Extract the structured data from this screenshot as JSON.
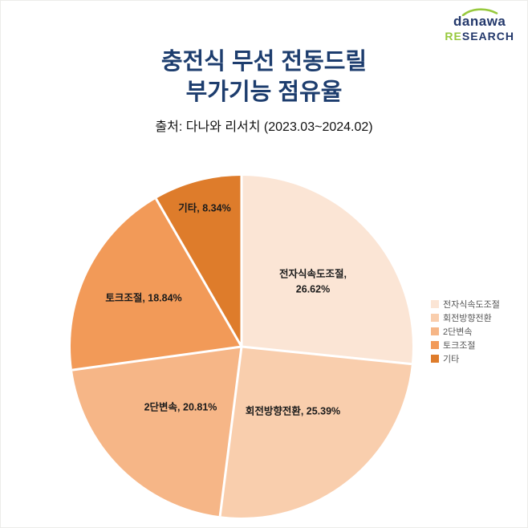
{
  "brand": {
    "name": "danawa",
    "research_highlight": "RE",
    "research_rest": "SEARCH",
    "green": "#97c93d",
    "navy": "#23386b"
  },
  "header": {
    "title_line1": "충전식 무선 전동드릴",
    "title_line2": "부가기능 점유율",
    "source": "출처: 다나와 리서치 (2023.03~2024.02)",
    "title_color": "#1d3d6e"
  },
  "chart_data": {
    "type": "pie",
    "title": "충전식 무선 전동드릴 부가기능 점유율",
    "labels": [
      "전자식속도조절",
      "회전방향전환",
      "2단변속",
      "토크조절",
      "기타"
    ],
    "values": [
      26.62,
      25.39,
      20.81,
      18.84,
      8.34
    ],
    "colors": [
      "#fbe5d5",
      "#f9cead",
      "#f6b687",
      "#f29a58",
      "#de7c2b"
    ],
    "label_format": "{label}, {value}%",
    "start_angle_deg": 0,
    "direction": "clockwise",
    "separator_color": "#ffffff",
    "legend_position": "right",
    "legend": [
      "전자식속도조절",
      "회전방향전환",
      "2단변속",
      "토크조절",
      "기타"
    ]
  }
}
